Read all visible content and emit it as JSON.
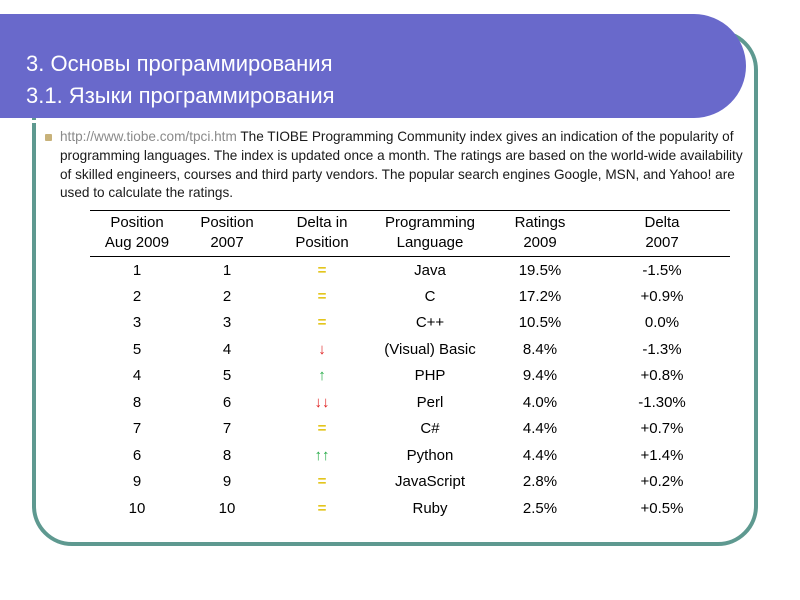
{
  "header": {
    "title_line1": "3. Основы программирования",
    "title_line2": "3.1. Языки программирования",
    "background_color": "#6969cb"
  },
  "intro": {
    "link": "http://www.tiobe.com/tpci.htm",
    "text": "The TIOBE Programming Community index gives an indication of the popularity of programming languages. The index is updated once a month. The ratings are based on the world-wide availability of skilled engineers, courses and third party vendors. The popular search engines Google, MSN, and Yahoo! are used to calculate the ratings."
  },
  "table": {
    "headers": [
      [
        "Position",
        "Aug 2009"
      ],
      [
        "Position",
        "2007"
      ],
      [
        "Delta in",
        "Position"
      ],
      [
        "Programming",
        "Language"
      ],
      [
        "Ratings",
        "2009"
      ],
      [
        "Delta",
        "2007"
      ]
    ],
    "rows": [
      {
        "pos2009": "1",
        "pos2007": "1",
        "delta": "=",
        "delta_type": "eq",
        "language": "Java",
        "rating": "19.5%",
        "rating_delta": "-1.5%"
      },
      {
        "pos2009": "2",
        "pos2007": "2",
        "delta": "=",
        "delta_type": "eq",
        "language": "C",
        "rating": "17.2%",
        "rating_delta": "+0.9%"
      },
      {
        "pos2009": "3",
        "pos2007": "3",
        "delta": "=",
        "delta_type": "eq",
        "language": "C++",
        "rating": "10.5%",
        "rating_delta": "0.0%"
      },
      {
        "pos2009": "5",
        "pos2007": "4",
        "delta": "↓",
        "delta_type": "down",
        "language": "(Visual) Basic",
        "rating": "8.4%",
        "rating_delta": "-1.3%"
      },
      {
        "pos2009": "4",
        "pos2007": "5",
        "delta": "↑",
        "delta_type": "up",
        "language": "PHP",
        "rating": "9.4%",
        "rating_delta": "+0.8%"
      },
      {
        "pos2009": "8",
        "pos2007": "6",
        "delta": "↓↓",
        "delta_type": "down",
        "language": "Perl",
        "rating": "4.0%",
        "rating_delta": "-1.30%"
      },
      {
        "pos2009": "7",
        "pos2007": "7",
        "delta": "=",
        "delta_type": "eq",
        "language": "C#",
        "rating": "4.4%",
        "rating_delta": "+0.7%"
      },
      {
        "pos2009": "6",
        "pos2007": "8",
        "delta": "↑↑",
        "delta_type": "up",
        "language": "Python",
        "rating": "4.4%",
        "rating_delta": "+1.4%"
      },
      {
        "pos2009": "9",
        "pos2007": "9",
        "delta": "=",
        "delta_type": "eq",
        "language": "JavaScript",
        "rating": "2.8%",
        "rating_delta": "+0.2%"
      },
      {
        "pos2009": "10",
        "pos2007": "10",
        "delta": "=",
        "delta_type": "eq",
        "language": "Ruby",
        "rating": "2.5%",
        "rating_delta": "+0.5%"
      }
    ]
  },
  "colors": {
    "equal": "#e3c51e",
    "up": "#22aa44",
    "down": "#e02020",
    "frame": "#5e9990"
  }
}
